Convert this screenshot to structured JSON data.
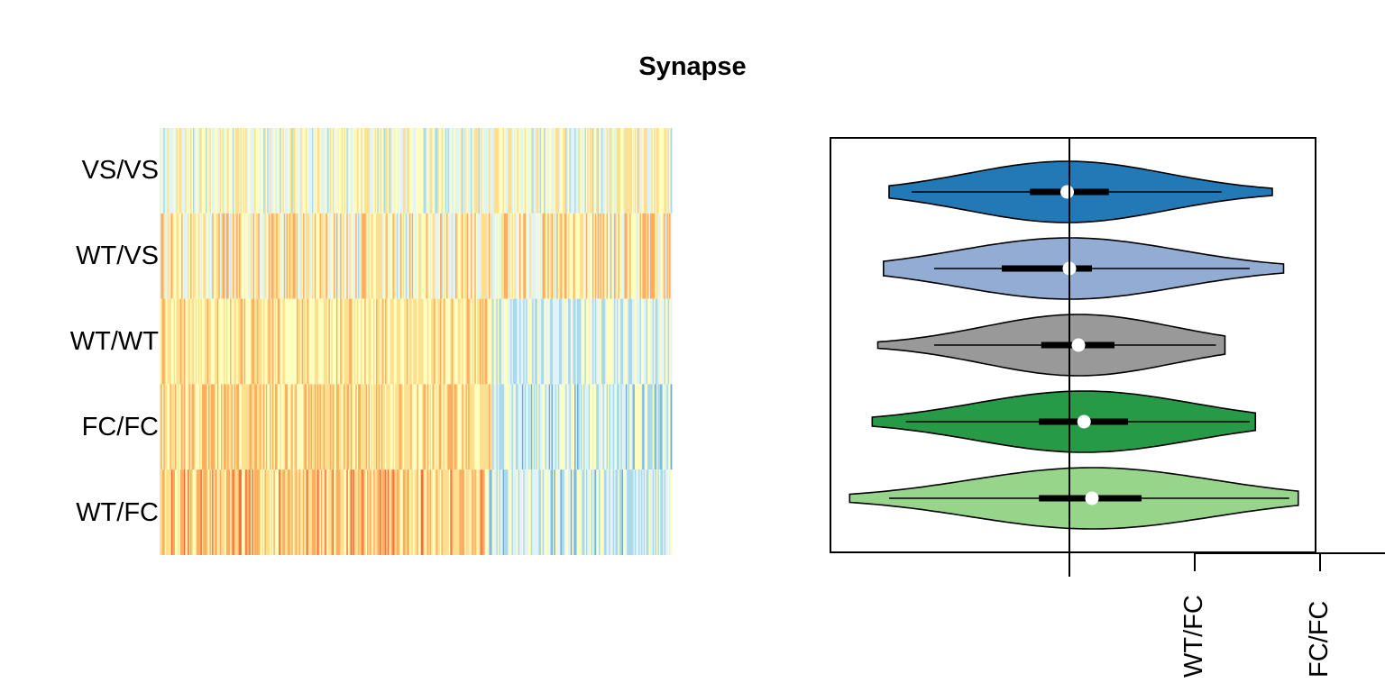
{
  "chart_data": {
    "title": "Synapse",
    "panels": [
      {
        "type": "heatmap",
        "rows": [
          "VS/VS",
          "WT/VS",
          "WT/WT",
          "FC/FC",
          "WT/FC"
        ],
        "palette": [
          "#d73027",
          "#f46d43",
          "#fdae61",
          "#fee090",
          "#ffffbf",
          "#e0f3f8",
          "#abd9e9",
          "#74add1",
          "#4575b4"
        ]
      },
      {
        "type": "violin",
        "series": [
          {
            "name": "VS/VS",
            "color": "#2279b5",
            "min": -1.6,
            "q1": -0.35,
            "median": -0.02,
            "q3": 0.35,
            "max": 1.8,
            "whisker_low": -1.4,
            "whisker_high": 1.35
          },
          {
            "name": "WT/VS",
            "color": "#93acd4",
            "min": -1.65,
            "q1": -0.6,
            "median": 0.0,
            "q3": 0.2,
            "max": 1.9,
            "whisker_low": -1.2,
            "whisker_high": 1.6
          },
          {
            "name": "WT/WT",
            "color": "#999999",
            "min": -1.7,
            "q1": -0.25,
            "median": 0.08,
            "q3": 0.4,
            "max": 1.38,
            "whisker_low": -1.2,
            "whisker_high": 1.3
          },
          {
            "name": "FC/FC",
            "color": "#279a48",
            "min": -1.75,
            "q1": -0.27,
            "median": 0.13,
            "q3": 0.52,
            "max": 1.65,
            "whisker_low": -1.45,
            "whisker_high": 1.6
          },
          {
            "name": "WT/FC",
            "color": "#96d58a",
            "min": -1.95,
            "q1": -0.27,
            "median": 0.2,
            "q3": 0.64,
            "max": 2.03,
            "whisker_low": -1.6,
            "whisker_high": 1.95
          }
        ],
        "x_tick_labels": [
          "WT/FC",
          "FC/FC"
        ]
      }
    ]
  }
}
